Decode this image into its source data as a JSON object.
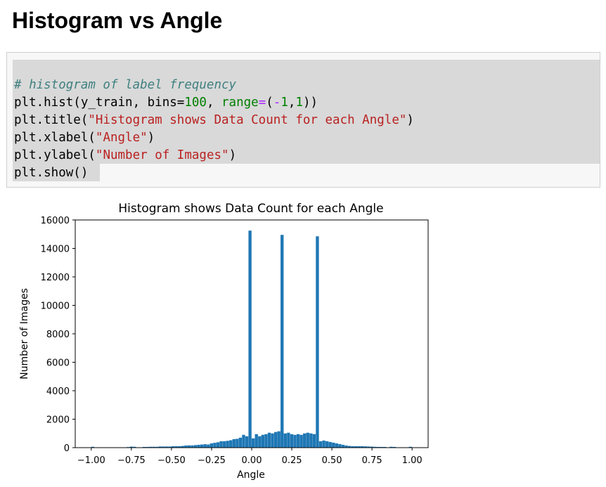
{
  "heading": "Histogram vs Angle",
  "code": {
    "comment": "# histogram of label frequency",
    "line2": {
      "pre": "plt.hist(y_train, bins=",
      "num": "100",
      "mid": ", ",
      "kw": "range",
      "eq": "=",
      "p1": "(",
      "neg": "-",
      "n1": "1",
      "comma": ",",
      "n2": "1",
      "close": "))"
    },
    "line3": {
      "pre": "plt.title(",
      "str": "\"Histogram shows Data Count for each Angle\"",
      "close": ")"
    },
    "line4": {
      "pre": "plt.xlabel(",
      "str": "\"Angle\"",
      "close": ")"
    },
    "line5": {
      "pre": "plt.ylabel(",
      "str": "\"Number of Images\"",
      "close": ")"
    },
    "line6": "plt.show()"
  },
  "chart_data": {
    "type": "bar",
    "title": "Histogram shows Data Count for each Angle",
    "xlabel": "Angle",
    "ylabel": "Number of Images",
    "xlim": [
      -1.1,
      1.1
    ],
    "ylim": [
      0,
      16000
    ],
    "xticks": [
      "−1.00",
      "−0.75",
      "−0.50",
      "−0.25",
      "0.00",
      "0.25",
      "0.50",
      "0.75",
      "1.00"
    ],
    "xtick_values": [
      -1.0,
      -0.75,
      -0.5,
      -0.25,
      0.0,
      0.25,
      0.5,
      0.75,
      1.0
    ],
    "yticks": [
      "0",
      "2000",
      "4000",
      "6000",
      "8000",
      "10000",
      "12000",
      "14000",
      "16000"
    ],
    "ytick_values": [
      0,
      2000,
      4000,
      6000,
      8000,
      10000,
      12000,
      14000,
      16000
    ],
    "bar_color": "#1f77b4",
    "grid": false,
    "bins": 100,
    "bin_range": [
      -1,
      1
    ],
    "values": [
      60,
      0,
      0,
      0,
      0,
      0,
      0,
      0,
      0,
      0,
      0,
      40,
      70,
      60,
      0,
      0,
      50,
      50,
      60,
      60,
      60,
      80,
      80,
      80,
      80,
      100,
      100,
      100,
      120,
      150,
      160,
      160,
      180,
      200,
      220,
      240,
      220,
      300,
      340,
      380,
      450,
      450,
      480,
      520,
      600,
      620,
      700,
      900,
      800,
      15250,
      650,
      950,
      800,
      900,
      950,
      1050,
      1000,
      1100,
      1150,
      14950,
      1000,
      1050,
      950,
      900,
      950,
      900,
      1000,
      1050,
      1000,
      950,
      14850,
      450,
      500,
      450,
      400,
      350,
      300,
      250,
      200,
      150,
      120,
      100,
      100,
      100,
      100,
      90,
      80,
      70,
      60,
      50,
      50,
      50,
      0,
      60,
      50,
      0,
      0,
      0,
      0,
      60
    ]
  }
}
